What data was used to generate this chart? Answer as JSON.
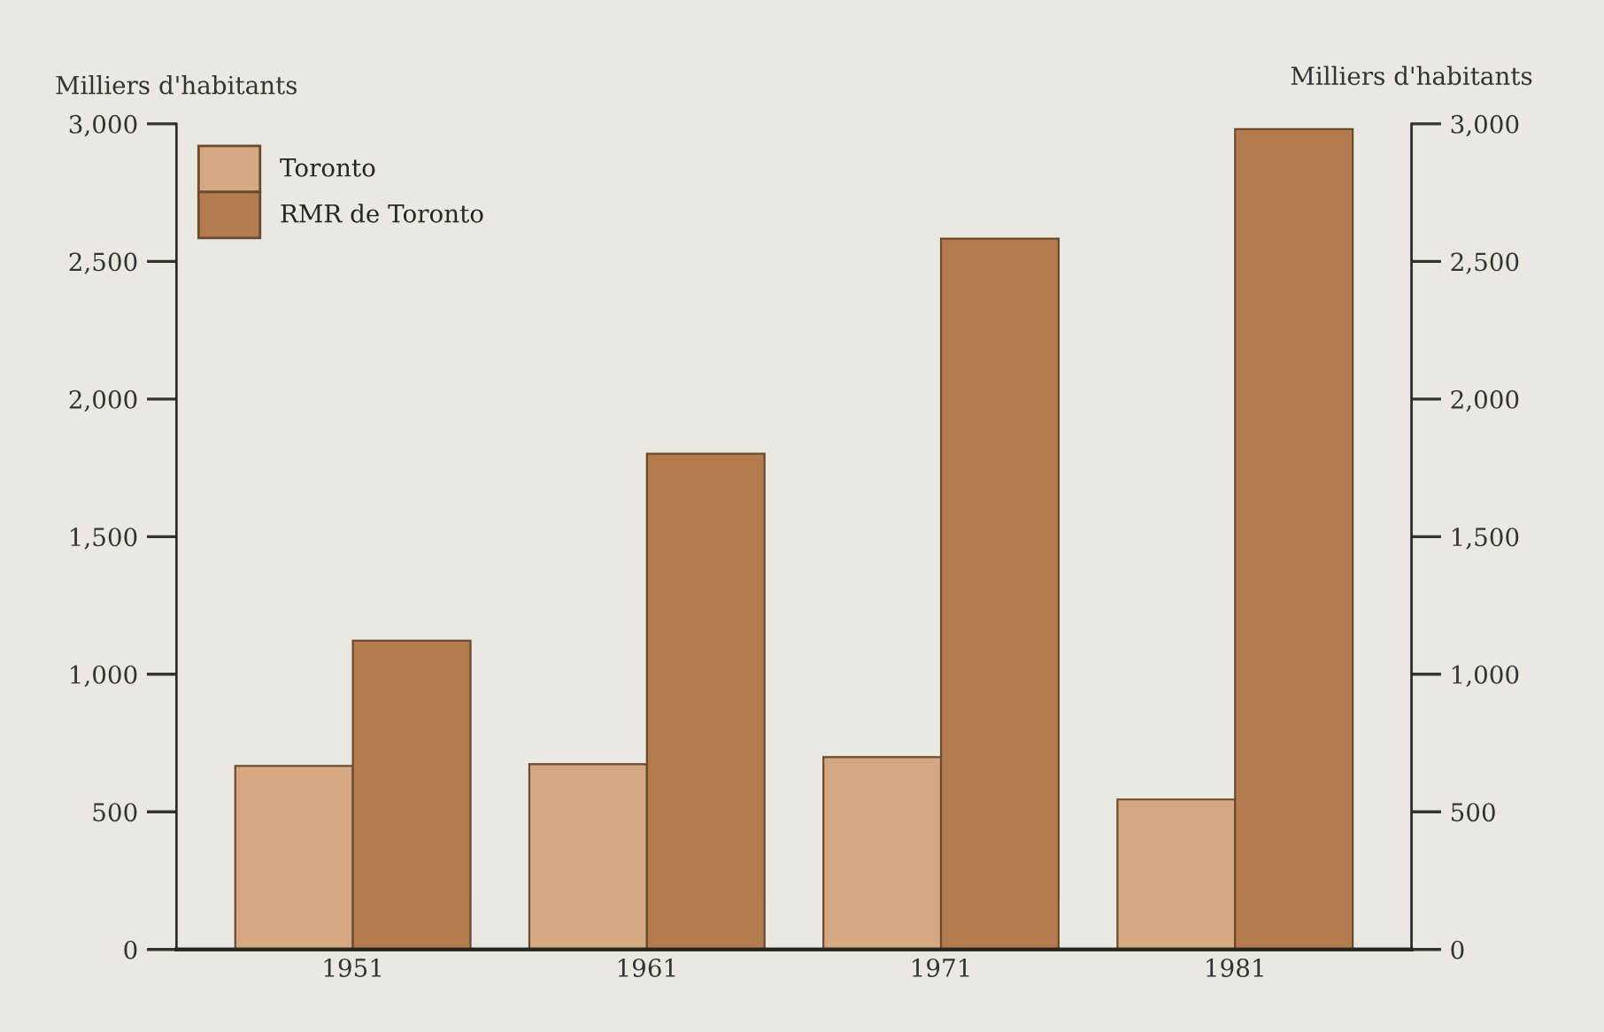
{
  "chart_data": {
    "type": "bar",
    "ylabel": "Milliers d'habitants",
    "y2label": "Milliers d'habitants",
    "categories": [
      "1951",
      "1961",
      "1971",
      "1981"
    ],
    "series": [
      {
        "name": "Toronto",
        "color": "#d6a882",
        "values": [
          667,
          673,
          699,
          545
        ]
      },
      {
        "name": "RMR de Toronto",
        "color": "#b47c4e",
        "values": [
          1122,
          1801,
          2583,
          2981
        ]
      }
    ],
    "ylim": [
      0,
      3000
    ],
    "yticks": [
      {
        "value": 0,
        "label": "0"
      },
      {
        "value": 500,
        "label": "500"
      },
      {
        "value": 1000,
        "label": "1,000"
      },
      {
        "value": 1500,
        "label": "1,500"
      },
      {
        "value": 2000,
        "label": "2,000"
      },
      {
        "value": 2500,
        "label": "2,500"
      },
      {
        "value": 3000,
        "label": "3,000"
      }
    ],
    "y2lim": [
      0,
      3000
    ],
    "y2ticks": [
      {
        "value": 0,
        "label": "0"
      },
      {
        "value": 500,
        "label": "500"
      },
      {
        "value": 1000,
        "label": "1,000"
      },
      {
        "value": 1500,
        "label": "1,500"
      },
      {
        "value": 2000,
        "label": "2,000"
      },
      {
        "value": 2500,
        "label": "2,500"
      },
      {
        "value": 3000,
        "label": "3,000"
      }
    ],
    "grid": false,
    "legend": "top left"
  }
}
